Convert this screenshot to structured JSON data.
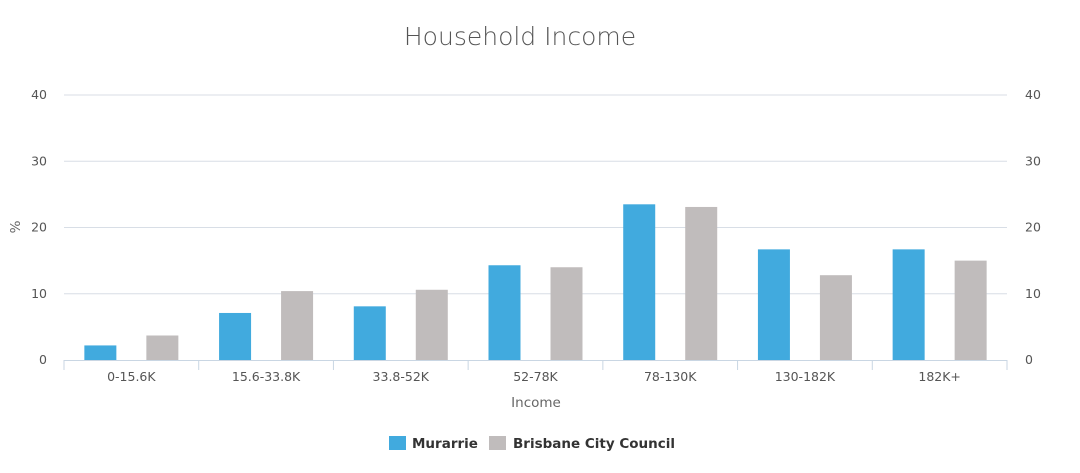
{
  "chart_data": {
    "type": "bar",
    "title": "Household Income",
    "xlabel": "Income",
    "ylabel": "%",
    "categories": [
      "0-15.6K",
      "15.6-33.8K",
      "33.8-52K",
      "52-78K",
      "78-130K",
      "130-182K",
      "182K+"
    ],
    "series": [
      {
        "name": "Murarrie",
        "color": "#41aade",
        "values": [
          2.2,
          7.1,
          8.1,
          14.3,
          23.5,
          16.7,
          16.7
        ]
      },
      {
        "name": "Brisbane City Council",
        "color": "#c0bcbc",
        "values": [
          3.7,
          10.4,
          10.6,
          14.0,
          23.1,
          12.8,
          15.0
        ]
      }
    ],
    "ylim": [
      0,
      40
    ],
    "yticks": [
      "0",
      "10",
      "20",
      "30",
      "40"
    ],
    "y_axes": "left and right",
    "grid": true,
    "legend_position": "bottom-center"
  }
}
